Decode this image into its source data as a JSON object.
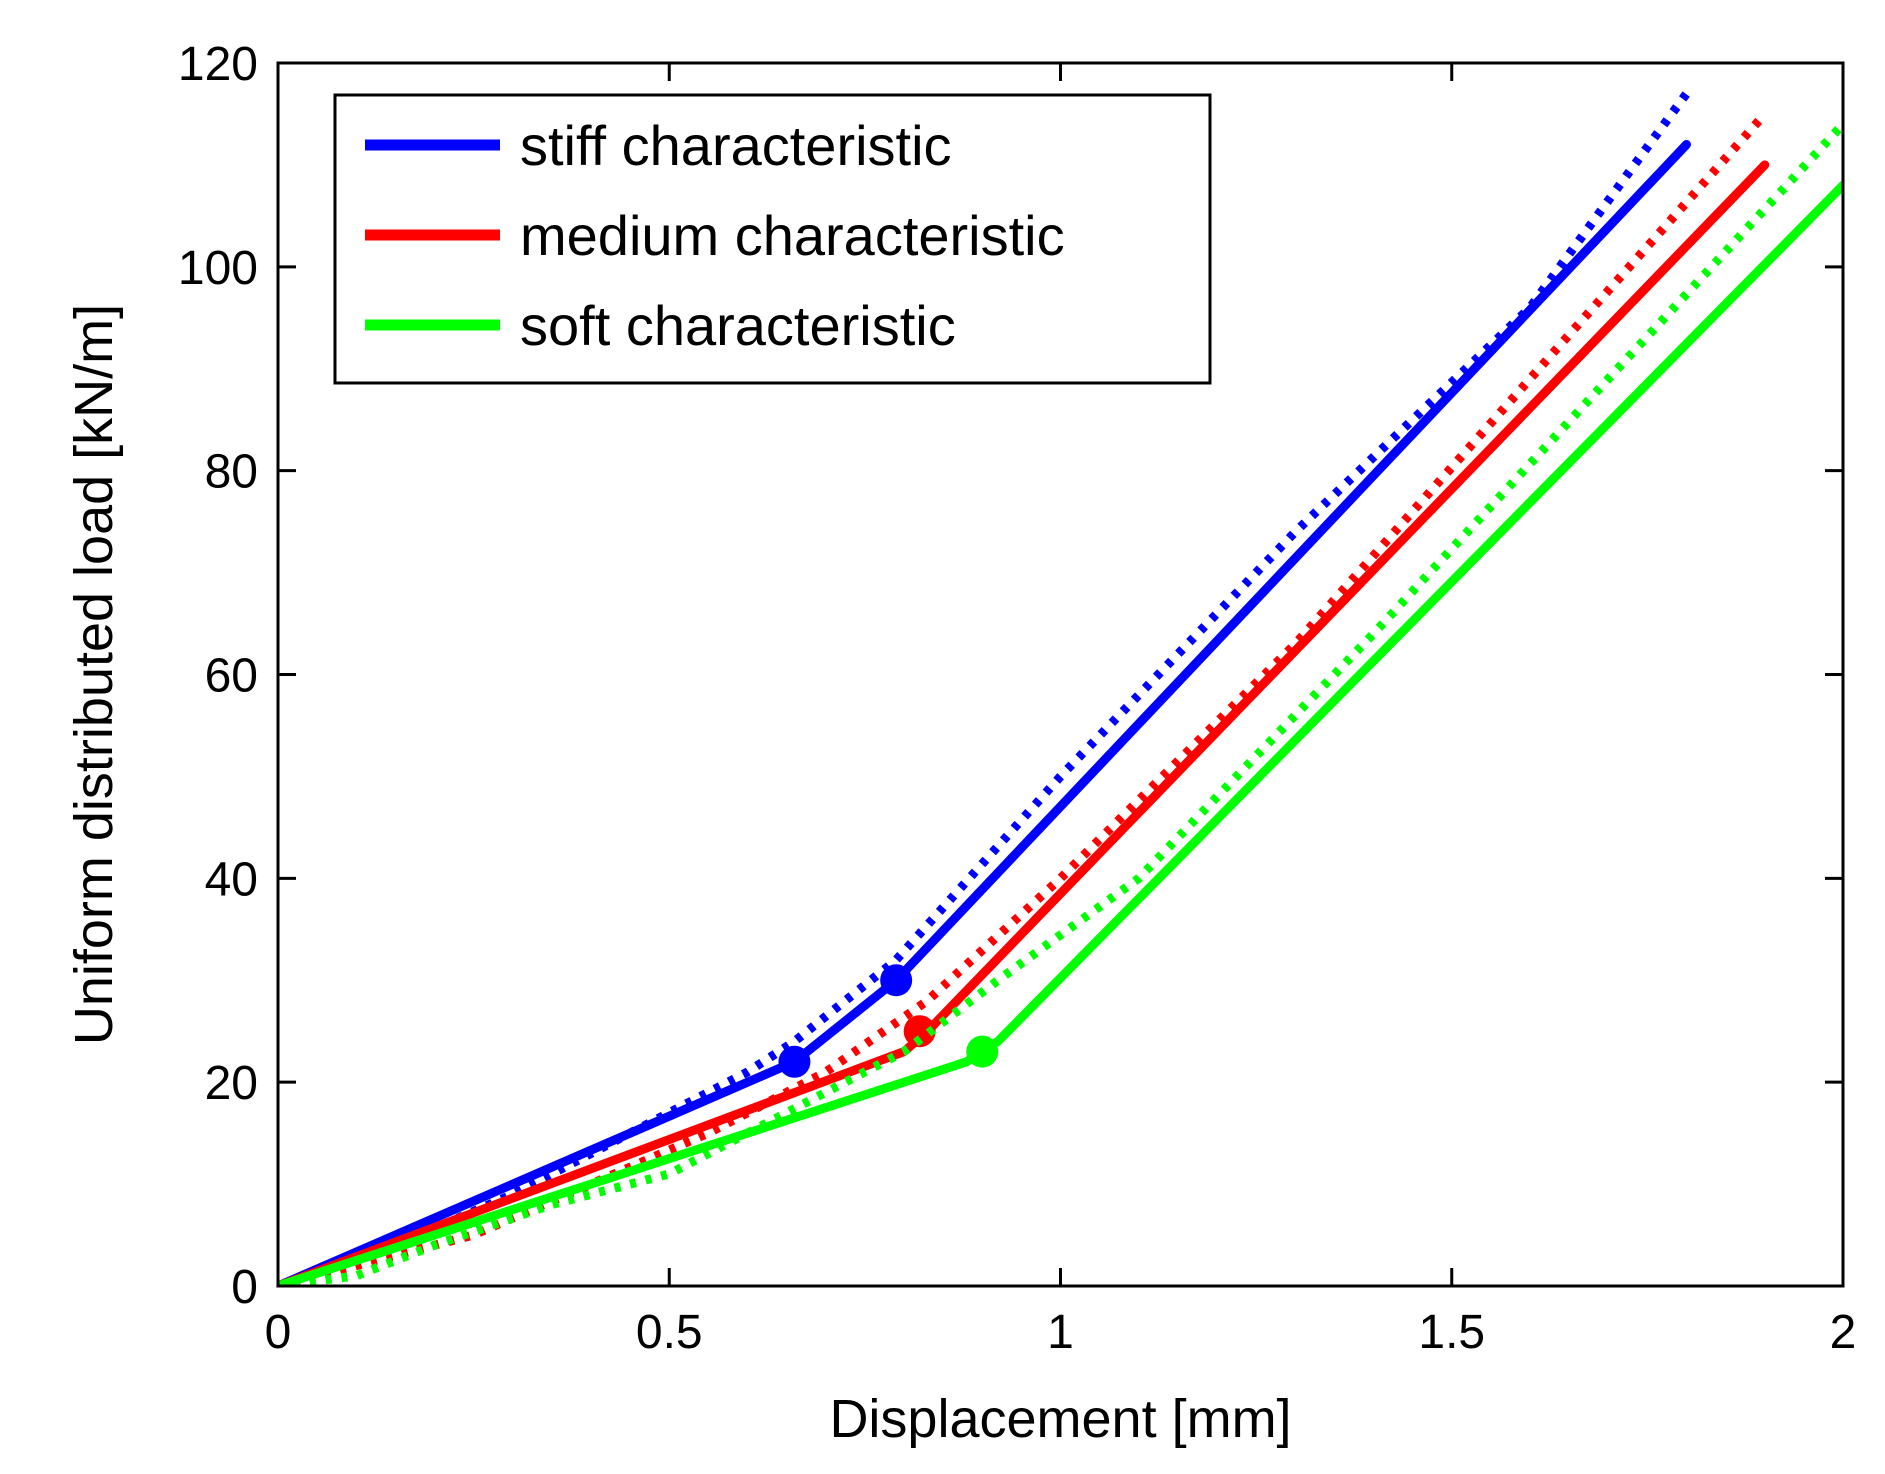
{
  "chart_data": {
    "type": "line",
    "xlabel": "Displacement [mm]",
    "ylabel": "Uniform distributed load [kN/m]",
    "xlim": [
      0,
      2
    ],
    "ylim": [
      0,
      120
    ],
    "x_ticks": [
      0,
      0.5,
      1,
      1.5,
      2
    ],
    "x_tick_labels": [
      "0",
      "0.5",
      "1",
      "1.5",
      "2"
    ],
    "y_ticks": [
      0,
      20,
      40,
      60,
      80,
      100,
      120
    ],
    "y_tick_labels": [
      "0",
      "20",
      "40",
      "60",
      "80",
      "100",
      "120"
    ],
    "legend_position": "top-left",
    "series": [
      {
        "name": "stiff characteristic",
        "color": "#0000ff",
        "solid": {
          "x": [
            0,
            0.66,
            0.79,
            1.8
          ],
          "y": [
            0,
            22,
            30,
            112
          ]
        },
        "dotted": {
          "x": [
            0,
            0.05,
            0.15,
            0.3,
            0.45,
            0.6,
            0.66,
            0.79,
            1.0,
            1.3,
            1.6,
            1.8
          ],
          "y": [
            0,
            1,
            4,
            9,
            15,
            21,
            24,
            32,
            50,
            74,
            96,
            117
          ]
        },
        "knee_markers": [
          {
            "x": 0.66,
            "y": 22
          },
          {
            "x": 0.79,
            "y": 30
          }
        ]
      },
      {
        "name": "medium characteristic",
        "color": "#ff0000",
        "solid": {
          "x": [
            0,
            0.8,
            0.83,
            1.9
          ],
          "y": [
            0,
            23,
            25,
            110
          ]
        },
        "dotted": {
          "x": [
            0,
            0.1,
            0.25,
            0.4,
            0.55,
            0.7,
            0.83,
            1.0,
            1.3,
            1.6,
            1.9
          ],
          "y": [
            0,
            2,
            5,
            10,
            15,
            21,
            28,
            40,
            63,
            89,
            115
          ]
        },
        "knee_markers": [
          {
            "x": 0.82,
            "y": 25
          }
        ]
      },
      {
        "name": "soft characteristic",
        "color": "#00ff00",
        "solid": {
          "x": [
            0,
            0.88,
            0.92,
            2.0
          ],
          "y": [
            0,
            22,
            24,
            108
          ]
        },
        "dotted": {
          "x": [
            0,
            0.1,
            0.2,
            0.35,
            0.5,
            0.65,
            0.8,
            0.92,
            1.1,
            1.4,
            1.7,
            2.0
          ],
          "y": [
            0,
            1,
            4,
            8,
            11,
            17,
            23,
            30,
            40,
            64,
            89,
            114
          ]
        },
        "knee_markers": [
          {
            "x": 0.9,
            "y": 23
          }
        ]
      }
    ]
  }
}
